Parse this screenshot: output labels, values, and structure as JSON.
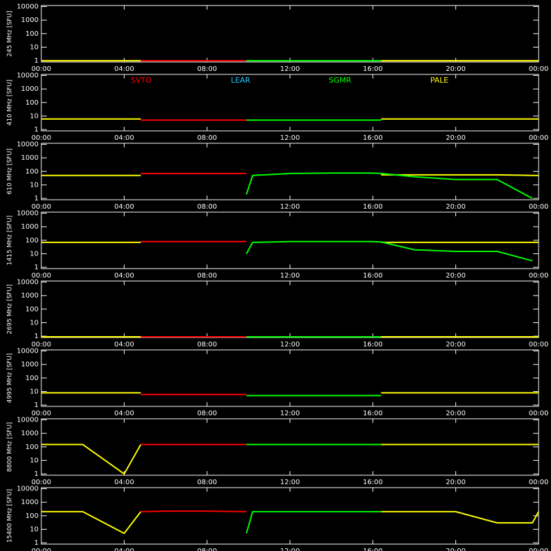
{
  "chart_data": [
    {
      "type": "line",
      "ylabel": "245 MHz [SFU]",
      "log_scale": true,
      "legend": false,
      "x": [
        0,
        2,
        4,
        4.8,
        6,
        8,
        9.9,
        10.2,
        12,
        14,
        16,
        16.4,
        18,
        20,
        22,
        23.7,
        24
      ],
      "xlim": [
        0,
        24
      ],
      "ylim": [
        0.8,
        12000
      ],
      "yticks": [
        1,
        10,
        100,
        1000,
        10000
      ],
      "xticks": [
        {
          "value": 0,
          "label": "00:00"
        },
        {
          "value": 4,
          "label": "04:00"
        },
        {
          "value": 8,
          "label": "08:00"
        },
        {
          "value": 12,
          "label": "12:00"
        },
        {
          "value": 16,
          "label": "16:00"
        },
        {
          "value": 20,
          "label": "20:00"
        },
        {
          "value": 24,
          "label": "00:00"
        }
      ],
      "series": [
        {
          "color": "#ffff00",
          "values": [
            1,
            1,
            1,
            1,
            null,
            null,
            null,
            null,
            null,
            null,
            null,
            1,
            1,
            1,
            1,
            1,
            1
          ]
        },
        {
          "color": "#ff0000",
          "values": [
            null,
            null,
            null,
            1,
            1,
            1,
            1,
            null,
            null,
            null,
            null,
            null,
            null,
            null,
            null,
            null,
            null
          ]
        },
        {
          "color": "#00ff00",
          "values": [
            null,
            null,
            null,
            null,
            null,
            null,
            1,
            1,
            1,
            1,
            1,
            1,
            null,
            null,
            null,
            null,
            null
          ]
        }
      ]
    },
    {
      "type": "line",
      "ylabel": "410 MHz [SFU]",
      "log_scale": true,
      "legend": true,
      "x": [
        0,
        2,
        4,
        4.8,
        6,
        8,
        9.9,
        10.2,
        12,
        14,
        16,
        16.4,
        18,
        20,
        22,
        23.7,
        24
      ],
      "xlim": [
        0,
        24
      ],
      "ylim": [
        0.8,
        12000
      ],
      "yticks": [
        1,
        10,
        100,
        1000,
        10000
      ],
      "xticks": [
        {
          "value": 0,
          "label": "00:00"
        },
        {
          "value": 4,
          "label": "04:00"
        },
        {
          "value": 8,
          "label": "08:00"
        },
        {
          "value": 12,
          "label": "12:00"
        },
        {
          "value": 16,
          "label": "16:00"
        },
        {
          "value": 20,
          "label": "20:00"
        },
        {
          "value": 24,
          "label": "00:00"
        }
      ],
      "series": [
        {
          "name": "SVTO",
          "color": "#ff0000",
          "values": [
            null,
            null,
            null,
            5,
            5,
            5,
            5,
            null,
            null,
            null,
            null,
            null,
            null,
            null,
            null,
            null,
            null
          ]
        },
        {
          "name": "LEAR",
          "color": "#22ccff",
          "values": [
            null,
            null,
            null,
            null,
            null,
            null,
            null,
            null,
            null,
            null,
            null,
            null,
            null,
            null,
            null,
            null,
            null
          ]
        },
        {
          "name": "SGMR",
          "color": "#00ff00",
          "values": [
            null,
            null,
            null,
            null,
            null,
            null,
            5,
            5,
            5,
            5,
            5,
            5,
            null,
            null,
            null,
            null,
            null
          ]
        },
        {
          "name": "PALE",
          "color": "#ffff00",
          "values": [
            6,
            6,
            6,
            6,
            null,
            null,
            null,
            null,
            null,
            null,
            null,
            6,
            6,
            6,
            6,
            6,
            6
          ]
        }
      ]
    },
    {
      "type": "line",
      "ylabel": "610 MHz [SFU]",
      "log_scale": true,
      "legend": false,
      "x": [
        0,
        2,
        4,
        4.8,
        6,
        8,
        9.9,
        10.2,
        12,
        14,
        16,
        16.4,
        18,
        20,
        22,
        23.7,
        24
      ],
      "xlim": [
        0,
        24
      ],
      "ylim": [
        0.8,
        12000
      ],
      "yticks": [
        1,
        10,
        100,
        1000,
        10000
      ],
      "xticks": [
        {
          "value": 0,
          "label": "00:00"
        },
        {
          "value": 4,
          "label": "04:00"
        },
        {
          "value": 8,
          "label": "08:00"
        },
        {
          "value": 12,
          "label": "12:00"
        },
        {
          "value": 16,
          "label": "16:00"
        },
        {
          "value": 20,
          "label": "20:00"
        },
        {
          "value": 24,
          "label": "00:00"
        }
      ],
      "series": [
        {
          "color": "#ffff00",
          "values": [
            50,
            50,
            50,
            50,
            null,
            null,
            null,
            null,
            null,
            null,
            null,
            55,
            55,
            55,
            55,
            50,
            50
          ]
        },
        {
          "color": "#ff0000",
          "values": [
            null,
            null,
            null,
            70,
            70,
            70,
            70,
            null,
            null,
            null,
            null,
            null,
            null,
            null,
            null,
            null,
            null
          ]
        },
        {
          "color": "#00ff00",
          "values": [
            null,
            null,
            null,
            null,
            null,
            null,
            2,
            50,
            70,
            75,
            75,
            70,
            40,
            25,
            25,
            1,
            null
          ]
        }
      ]
    },
    {
      "type": "line",
      "ylabel": "1415 MHz [SFU]",
      "log_scale": true,
      "legend": false,
      "x": [
        0,
        2,
        4,
        4.8,
        6,
        8,
        9.9,
        10.2,
        12,
        14,
        16,
        16.4,
        18,
        20,
        22,
        23.7,
        24
      ],
      "xlim": [
        0,
        24
      ],
      "ylim": [
        0.8,
        12000
      ],
      "yticks": [
        1,
        10,
        100,
        1000,
        10000
      ],
      "xticks": [
        {
          "value": 0,
          "label": "00:00"
        },
        {
          "value": 4,
          "label": "04:00"
        },
        {
          "value": 8,
          "label": "08:00"
        },
        {
          "value": 12,
          "label": "12:00"
        },
        {
          "value": 16,
          "label": "16:00"
        },
        {
          "value": 20,
          "label": "20:00"
        },
        {
          "value": 24,
          "label": "00:00"
        }
      ],
      "series": [
        {
          "color": "#ffff00",
          "values": [
            70,
            70,
            70,
            70,
            null,
            null,
            null,
            null,
            null,
            null,
            null,
            70,
            70,
            70,
            70,
            70,
            70
          ]
        },
        {
          "color": "#ff0000",
          "values": [
            null,
            null,
            null,
            80,
            80,
            80,
            80,
            null,
            null,
            null,
            null,
            null,
            null,
            null,
            null,
            null,
            null
          ]
        },
        {
          "color": "#00ff00",
          "values": [
            null,
            null,
            null,
            null,
            null,
            null,
            10,
            70,
            80,
            80,
            80,
            75,
            20,
            15,
            15,
            3,
            null
          ]
        }
      ]
    },
    {
      "type": "line",
      "ylabel": "2695 MHz [SFU]",
      "log_scale": true,
      "legend": false,
      "x": [
        0,
        2,
        4,
        4.8,
        6,
        8,
        9.9,
        10.2,
        12,
        14,
        16,
        16.4,
        18,
        20,
        22,
        23.7,
        24
      ],
      "xlim": [
        0,
        24
      ],
      "ylim": [
        0.8,
        12000
      ],
      "yticks": [
        1,
        10,
        100,
        1000,
        10000
      ],
      "xticks": [
        {
          "value": 0,
          "label": "00:00"
        },
        {
          "value": 4,
          "label": "04:00"
        },
        {
          "value": 8,
          "label": "08:00"
        },
        {
          "value": 12,
          "label": "12:00"
        },
        {
          "value": 16,
          "label": "16:00"
        },
        {
          "value": 20,
          "label": "20:00"
        },
        {
          "value": 24,
          "label": "00:00"
        }
      ],
      "series": [
        {
          "color": "#ffff00",
          "values": [
            0.9,
            0.9,
            0.9,
            0.9,
            null,
            null,
            null,
            null,
            null,
            null,
            null,
            0.9,
            0.9,
            0.9,
            0.9,
            0.9,
            0.9
          ]
        },
        {
          "color": "#ff0000",
          "values": [
            null,
            null,
            null,
            0.9,
            0.9,
            0.9,
            0.9,
            null,
            null,
            null,
            null,
            null,
            null,
            null,
            null,
            null,
            null
          ]
        },
        {
          "color": "#00ff00",
          "values": [
            null,
            null,
            null,
            null,
            null,
            null,
            0.9,
            0.9,
            0.9,
            0.9,
            0.9,
            0.9,
            null,
            null,
            null,
            null,
            null
          ]
        }
      ]
    },
    {
      "type": "line",
      "ylabel": "4995 MHz [SFU]",
      "log_scale": true,
      "legend": false,
      "x": [
        0,
        2,
        4,
        4.8,
        6,
        8,
        9.9,
        10.2,
        12,
        14,
        16,
        16.4,
        18,
        20,
        22,
        23.7,
        24
      ],
      "xlim": [
        0,
        24
      ],
      "ylim": [
        0.8,
        12000
      ],
      "yticks": [
        1,
        10,
        100,
        1000,
        10000
      ],
      "xticks": [
        {
          "value": 0,
          "label": "00:00"
        },
        {
          "value": 4,
          "label": "04:00"
        },
        {
          "value": 8,
          "label": "08:00"
        },
        {
          "value": 12,
          "label": "12:00"
        },
        {
          "value": 16,
          "label": "16:00"
        },
        {
          "value": 20,
          "label": "20:00"
        },
        {
          "value": 24,
          "label": "00:00"
        }
      ],
      "series": [
        {
          "color": "#ffff00",
          "values": [
            8,
            8,
            8,
            8,
            null,
            null,
            null,
            null,
            null,
            null,
            null,
            8,
            8,
            8,
            8,
            8,
            8
          ]
        },
        {
          "color": "#ff0000",
          "values": [
            null,
            null,
            null,
            6,
            6,
            6,
            6,
            null,
            null,
            null,
            null,
            null,
            null,
            null,
            null,
            null,
            null
          ]
        },
        {
          "color": "#00ff00",
          "values": [
            null,
            null,
            null,
            null,
            null,
            null,
            5,
            5,
            5,
            5,
            5,
            5,
            null,
            null,
            null,
            null,
            null
          ]
        }
      ]
    },
    {
      "type": "line",
      "ylabel": "8800 MHz [SFU]",
      "log_scale": true,
      "legend": false,
      "x": [
        0,
        2,
        4,
        4.8,
        6,
        8,
        9.9,
        10.2,
        12,
        14,
        16,
        16.4,
        18,
        20,
        22,
        23.7,
        24
      ],
      "xlim": [
        0,
        24
      ],
      "ylim": [
        0.8,
        12000
      ],
      "yticks": [
        1,
        10,
        100,
        1000,
        10000
      ],
      "xticks": [
        {
          "value": 0,
          "label": "00:00"
        },
        {
          "value": 4,
          "label": "04:00"
        },
        {
          "value": 8,
          "label": "08:00"
        },
        {
          "value": 12,
          "label": "12:00"
        },
        {
          "value": 16,
          "label": "16:00"
        },
        {
          "value": 20,
          "label": "20:00"
        },
        {
          "value": 24,
          "label": "00:00"
        }
      ],
      "series": [
        {
          "color": "#ffff00",
          "values": [
            150,
            150,
            1,
            150,
            null,
            null,
            null,
            null,
            null,
            null,
            null,
            150,
            150,
            150,
            150,
            150,
            150
          ]
        },
        {
          "color": "#ff0000",
          "values": [
            null,
            null,
            null,
            150,
            150,
            150,
            150,
            null,
            null,
            null,
            null,
            null,
            null,
            null,
            null,
            null,
            null
          ]
        },
        {
          "color": "#00ff00",
          "values": [
            null,
            null,
            null,
            null,
            null,
            null,
            150,
            150,
            150,
            150,
            150,
            150,
            null,
            null,
            null,
            null,
            null
          ]
        }
      ]
    },
    {
      "type": "line",
      "ylabel": "15400 MHz [SFU]",
      "log_scale": true,
      "legend": false,
      "x": [
        0,
        2,
        4,
        4.8,
        6,
        8,
        9.9,
        10.2,
        12,
        14,
        16,
        16.4,
        18,
        20,
        22,
        23.7,
        24
      ],
      "xlim": [
        0,
        24
      ],
      "ylim": [
        0.8,
        12000
      ],
      "yticks": [
        1,
        10,
        100,
        1000,
        10000
      ],
      "xticks": [
        {
          "value": 0,
          "label": "00:00"
        },
        {
          "value": 4,
          "label": "04:00"
        },
        {
          "value": 8,
          "label": "08:00"
        },
        {
          "value": 12,
          "label": "12:00"
        },
        {
          "value": 16,
          "label": "16:00"
        },
        {
          "value": 20,
          "label": "20:00"
        },
        {
          "value": 24,
          "label": "00:00"
        }
      ],
      "series": [
        {
          "color": "#ffff00",
          "values": [
            200,
            200,
            5,
            200,
            null,
            null,
            null,
            null,
            null,
            null,
            null,
            200,
            200,
            200,
            30,
            30,
            200
          ]
        },
        {
          "color": "#ff0000",
          "values": [
            null,
            null,
            null,
            200,
            220,
            220,
            200,
            null,
            null,
            null,
            null,
            null,
            null,
            null,
            null,
            null,
            null
          ]
        },
        {
          "color": "#00ff00",
          "values": [
            null,
            null,
            null,
            null,
            null,
            null,
            5,
            200,
            200,
            200,
            200,
            200,
            null,
            null,
            null,
            null,
            null
          ]
        }
      ]
    }
  ]
}
